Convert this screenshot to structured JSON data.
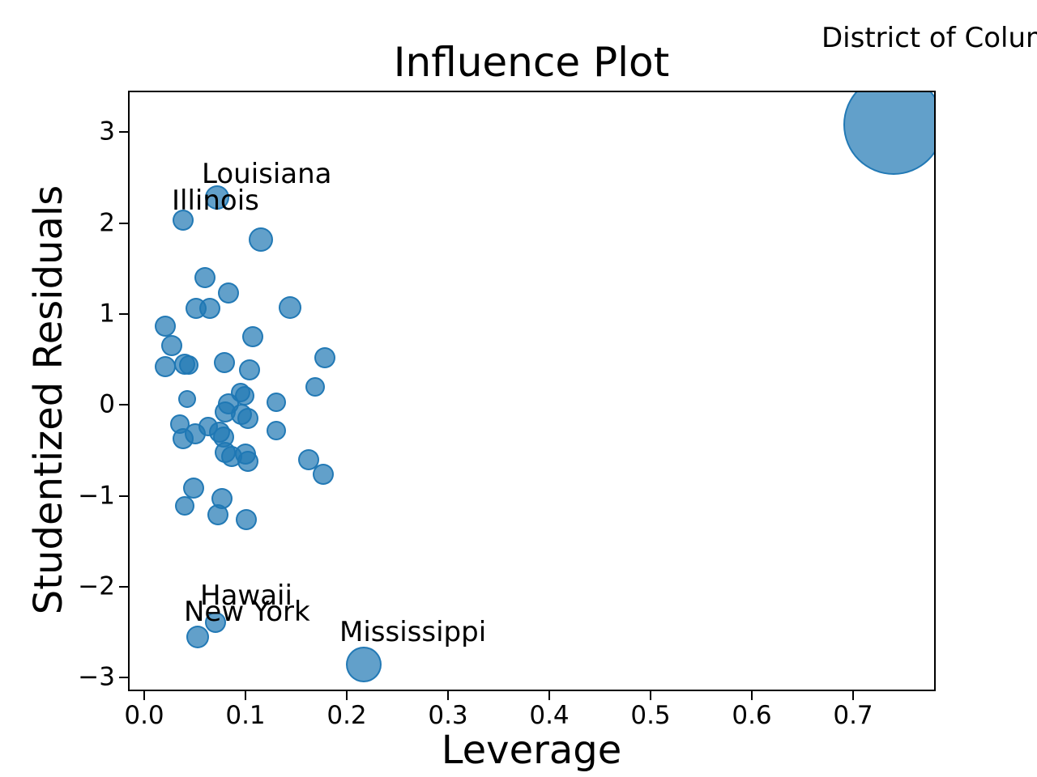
{
  "figure": {
    "background_color": "#ffffff",
    "axis_color": "#000000"
  },
  "chart_data": {
    "type": "scatter",
    "title": "Influence Plot",
    "xlabel": "Leverage",
    "ylabel": "Studentized Residuals",
    "xlim": [
      -0.0144,
      0.78
    ],
    "ylim": [
      -3.13,
      3.44
    ],
    "grid": false,
    "legend": null,
    "marker_color": "#1f77b4",
    "marker_fill_opacity": 0.7,
    "marker_edge_opacity": 0.95,
    "x_ticks": [
      {
        "value": 0.0,
        "label": "0.0"
      },
      {
        "value": 0.1,
        "label": "0.1"
      },
      {
        "value": 0.2,
        "label": "0.2"
      },
      {
        "value": 0.3,
        "label": "0.3"
      },
      {
        "value": 0.4,
        "label": "0.4"
      },
      {
        "value": 0.5,
        "label": "0.5"
      },
      {
        "value": 0.6,
        "label": "0.6"
      },
      {
        "value": 0.7,
        "label": "0.7"
      }
    ],
    "y_ticks": [
      {
        "value": 3,
        "label": "3"
      },
      {
        "value": 2,
        "label": "2"
      },
      {
        "value": 1,
        "label": "1"
      },
      {
        "value": 0,
        "label": "0"
      },
      {
        "value": -1,
        "label": "−1"
      },
      {
        "value": -2,
        "label": "−2"
      },
      {
        "value": -3,
        "label": "−3"
      }
    ],
    "points": [
      {
        "x": 0.74,
        "y": 3.08,
        "r": 62,
        "label": "District of Columbia"
      },
      {
        "x": 0.072,
        "y": 2.28,
        "r": 15,
        "label": "Louisiana"
      },
      {
        "x": 0.038,
        "y": 2.03,
        "r": 13,
        "label": "Illinois"
      },
      {
        "x": 0.115,
        "y": 1.82,
        "r": 15
      },
      {
        "x": 0.06,
        "y": 1.4,
        "r": 13
      },
      {
        "x": 0.083,
        "y": 1.23,
        "r": 13
      },
      {
        "x": 0.051,
        "y": 1.06,
        "r": 13
      },
      {
        "x": 0.065,
        "y": 1.06,
        "r": 13
      },
      {
        "x": 0.144,
        "y": 1.07,
        "r": 14
      },
      {
        "x": 0.021,
        "y": 0.87,
        "r": 13
      },
      {
        "x": 0.027,
        "y": 0.65,
        "r": 13
      },
      {
        "x": 0.021,
        "y": 0.42,
        "r": 13
      },
      {
        "x": 0.04,
        "y": 0.45,
        "r": 13
      },
      {
        "x": 0.044,
        "y": 0.44,
        "r": 12
      },
      {
        "x": 0.079,
        "y": 0.47,
        "r": 13
      },
      {
        "x": 0.107,
        "y": 0.75,
        "r": 13
      },
      {
        "x": 0.104,
        "y": 0.39,
        "r": 13
      },
      {
        "x": 0.178,
        "y": 0.52,
        "r": 13
      },
      {
        "x": 0.169,
        "y": 0.2,
        "r": 12
      },
      {
        "x": 0.042,
        "y": 0.07,
        "r": 11
      },
      {
        "x": 0.095,
        "y": 0.14,
        "r": 12
      },
      {
        "x": 0.099,
        "y": 0.1,
        "r": 12
      },
      {
        "x": 0.083,
        "y": 0.01,
        "r": 13
      },
      {
        "x": 0.08,
        "y": -0.08,
        "r": 13
      },
      {
        "x": 0.096,
        "y": -0.1,
        "r": 13
      },
      {
        "x": 0.102,
        "y": -0.15,
        "r": 13
      },
      {
        "x": 0.13,
        "y": 0.03,
        "r": 12
      },
      {
        "x": 0.13,
        "y": -0.28,
        "r": 12
      },
      {
        "x": 0.035,
        "y": -0.21,
        "r": 12
      },
      {
        "x": 0.038,
        "y": -0.37,
        "r": 13
      },
      {
        "x": 0.05,
        "y": -0.32,
        "r": 13
      },
      {
        "x": 0.063,
        "y": -0.24,
        "r": 12
      },
      {
        "x": 0.074,
        "y": -0.3,
        "r": 13
      },
      {
        "x": 0.078,
        "y": -0.35,
        "r": 13
      },
      {
        "x": 0.08,
        "y": -0.52,
        "r": 13
      },
      {
        "x": 0.086,
        "y": -0.57,
        "r": 13
      },
      {
        "x": 0.1,
        "y": -0.54,
        "r": 13
      },
      {
        "x": 0.102,
        "y": -0.62,
        "r": 13
      },
      {
        "x": 0.162,
        "y": -0.6,
        "r": 13
      },
      {
        "x": 0.177,
        "y": -0.76,
        "r": 13
      },
      {
        "x": 0.049,
        "y": -0.91,
        "r": 13
      },
      {
        "x": 0.04,
        "y": -1.11,
        "r": 12
      },
      {
        "x": 0.077,
        "y": -1.03,
        "r": 13
      },
      {
        "x": 0.073,
        "y": -1.21,
        "r": 13
      },
      {
        "x": 0.101,
        "y": -1.26,
        "r": 13
      },
      {
        "x": 0.07,
        "y": -2.39,
        "r": 13,
        "label": "Hawaii"
      },
      {
        "x": 0.053,
        "y": -2.55,
        "r": 14,
        "label": "New York"
      },
      {
        "x": 0.217,
        "y": -2.85,
        "r": 22,
        "label": "Mississippi"
      }
    ],
    "annotations": [
      {
        "text": "District of Columbia",
        "x": 0.6688,
        "y": 3.956
      },
      {
        "text": "Louisiana",
        "x": 0.0568,
        "y": 2.461
      },
      {
        "text": "Illinois",
        "x": 0.0272,
        "y": 2.167
      },
      {
        "text": "Hawaii",
        "x": 0.0552,
        "y": -2.177
      },
      {
        "text": "New York",
        "x": 0.0392,
        "y": -2.355
      },
      {
        "text": "Mississippi",
        "x": 0.1928,
        "y": -2.578
      }
    ]
  }
}
